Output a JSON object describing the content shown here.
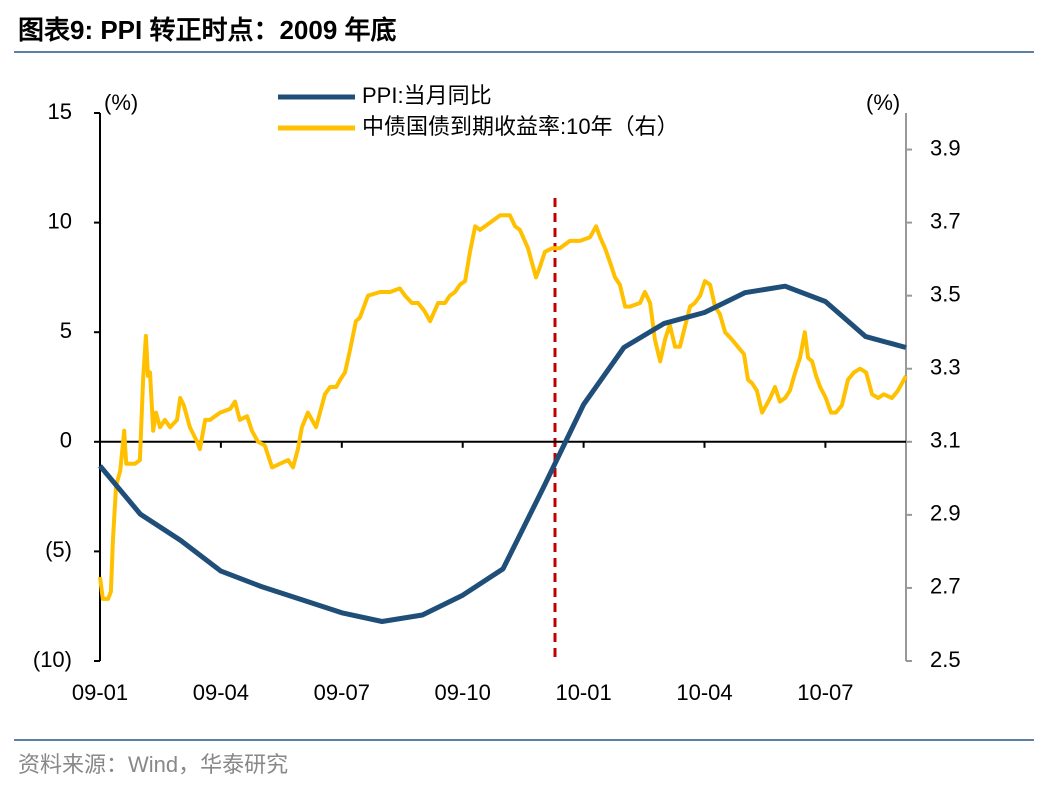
{
  "chart_data": {
    "type": "line",
    "title": "图表9:  PPI 转正时点：2009 年底",
    "source": "资料来源：Wind，华泰研究",
    "y_unit": "(%)",
    "y2_unit": "(%)",
    "xlim": [
      0,
      20
    ],
    "xticks": [
      {
        "value": 0,
        "label": "09-01"
      },
      {
        "value": 3,
        "label": "09-04"
      },
      {
        "value": 6,
        "label": "09-07"
      },
      {
        "value": 9,
        "label": "09-10"
      },
      {
        "value": 12,
        "label": "10-01"
      },
      {
        "value": 15,
        "label": "10-04"
      },
      {
        "value": 18,
        "label": "10-07"
      }
    ],
    "ylim": [
      -10,
      15
    ],
    "yticks": [
      {
        "value": -10,
        "label": "(10)"
      },
      {
        "value": -5,
        "label": "(5)"
      },
      0,
      5,
      10,
      15
    ],
    "y2lim": [
      2.5,
      4.0
    ],
    "y2ticks": [
      2.5,
      2.7,
      2.9,
      3.1,
      3.3,
      3.5,
      3.7,
      3.9
    ],
    "series": [
      {
        "name": "PPI:当月同比",
        "color": "#1f4e79",
        "x": [
          0,
          1,
          2,
          3,
          4,
          5,
          6,
          7,
          8,
          9,
          10,
          11,
          12,
          13,
          14,
          15,
          16,
          17,
          18,
          19,
          20
        ],
        "values": [
          -1.1,
          -3.3,
          -4.5,
          -5.9,
          -6.6,
          -7.2,
          -7.8,
          -8.2,
          -7.9,
          -7.0,
          -5.8,
          -2.1,
          1.7,
          4.3,
          5.4,
          5.9,
          6.8,
          7.1,
          6.4,
          4.8,
          4.3
        ]
      },
      {
        "name": "中债国债到期收益率:10年（右）",
        "color": "#ffc000",
        "axis": "y2",
        "x": [
          0,
          0.07,
          0.2,
          0.27,
          0.32,
          0.4,
          0.5,
          0.6,
          0.65,
          0.87,
          0.99,
          1.07,
          1.14,
          1.19,
          1.24,
          1.32,
          1.39,
          1.49,
          1.61,
          1.74,
          1.91,
          1.99,
          2.08,
          2.23,
          2.41,
          2.48,
          2.61,
          2.73,
          2.98,
          3.23,
          3.35,
          3.47,
          3.65,
          3.77,
          3.92,
          4.09,
          4.27,
          4.47,
          4.67,
          4.79,
          4.91,
          5.01,
          5.16,
          5.26,
          5.36,
          5.46,
          5.58,
          5.71,
          5.86,
          5.96,
          6.08,
          6.2,
          6.35,
          6.45,
          6.65,
          6.95,
          7.2,
          7.44,
          7.57,
          7.74,
          7.89,
          8.04,
          8.19,
          8.39,
          8.56,
          8.68,
          8.81,
          8.93,
          9.06,
          9.18,
          9.31,
          9.43,
          9.68,
          9.93,
          10.17,
          10.3,
          10.42,
          10.62,
          10.72,
          10.82,
          10.92,
          11.04,
          11.22,
          11.41,
          11.66,
          11.91,
          12.16,
          12.31,
          12.41,
          12.53,
          12.66,
          12.78,
          12.9,
          13.03,
          13.15,
          13.4,
          13.52,
          13.65,
          13.77,
          13.9,
          14.02,
          14.14,
          14.27,
          14.39,
          14.64,
          14.76,
          14.89,
          15.01,
          15.14,
          15.26,
          15.38,
          15.51,
          15.68,
          15.83,
          15.98,
          16.08,
          16.18,
          16.3,
          16.43,
          16.53,
          16.63,
          16.75,
          16.87,
          17.0,
          17.12,
          17.25,
          17.37,
          17.49,
          17.57,
          17.67,
          17.77,
          17.87,
          18.01,
          18.14,
          18.26,
          18.41,
          18.56,
          18.71,
          18.86,
          19.01,
          19.16,
          19.31,
          19.45,
          19.65,
          19.8,
          20.0
        ],
        "values": [
          2.73,
          2.67,
          2.67,
          2.69,
          2.83,
          2.98,
          3.02,
          3.13,
          3.04,
          3.04,
          3.05,
          3.27,
          3.39,
          3.28,
          3.29,
          3.13,
          3.18,
          3.14,
          3.16,
          3.14,
          3.16,
          3.22,
          3.2,
          3.14,
          3.1,
          3.08,
          3.16,
          3.16,
          3.18,
          3.19,
          3.21,
          3.16,
          3.17,
          3.13,
          3.1,
          3.09,
          3.03,
          3.04,
          3.05,
          3.03,
          3.08,
          3.14,
          3.18,
          3.16,
          3.14,
          3.18,
          3.23,
          3.25,
          3.25,
          3.27,
          3.29,
          3.35,
          3.43,
          3.44,
          3.5,
          3.51,
          3.51,
          3.52,
          3.5,
          3.48,
          3.48,
          3.46,
          3.43,
          3.48,
          3.48,
          3.5,
          3.51,
          3.53,
          3.54,
          3.62,
          3.69,
          3.68,
          3.7,
          3.72,
          3.72,
          3.69,
          3.68,
          3.63,
          3.59,
          3.55,
          3.58,
          3.62,
          3.63,
          3.63,
          3.65,
          3.65,
          3.66,
          3.69,
          3.66,
          3.63,
          3.59,
          3.55,
          3.53,
          3.47,
          3.47,
          3.48,
          3.51,
          3.48,
          3.38,
          3.32,
          3.38,
          3.42,
          3.36,
          3.36,
          3.47,
          3.48,
          3.5,
          3.54,
          3.53,
          3.47,
          3.45,
          3.4,
          3.38,
          3.36,
          3.34,
          3.27,
          3.26,
          3.24,
          3.18,
          3.2,
          3.22,
          3.25,
          3.21,
          3.22,
          3.24,
          3.29,
          3.33,
          3.4,
          3.33,
          3.32,
          3.28,
          3.25,
          3.22,
          3.18,
          3.18,
          3.2,
          3.27,
          3.29,
          3.3,
          3.29,
          3.23,
          3.22,
          3.23,
          3.22,
          3.24,
          3.28
        ]
      }
    ]
  }
}
